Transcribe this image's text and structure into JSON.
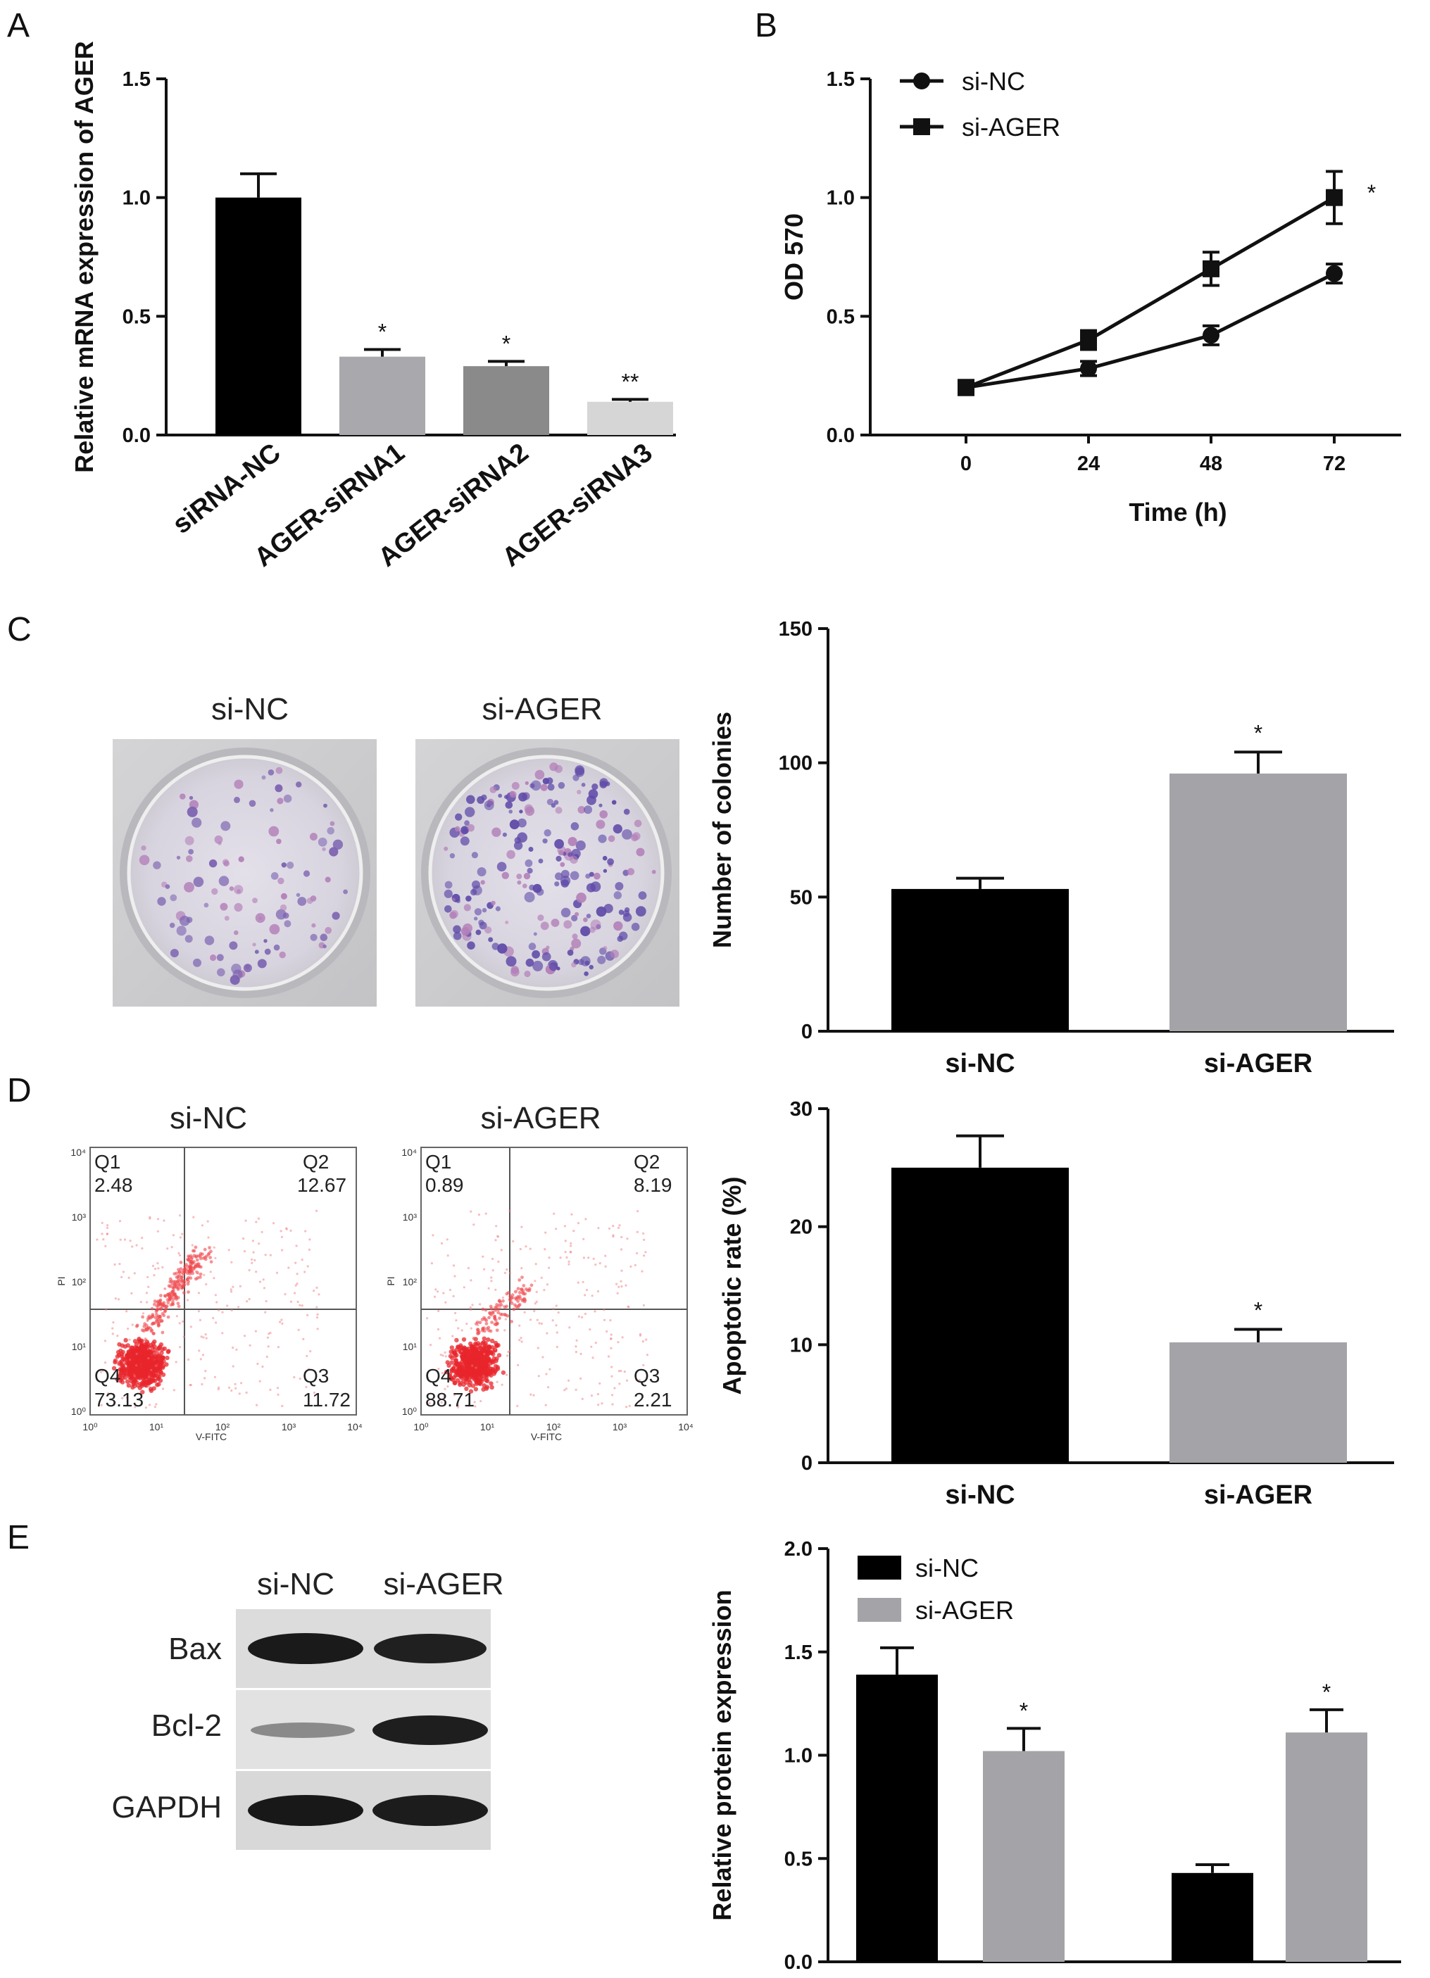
{
  "panel_labels": [
    "A",
    "B",
    "C",
    "D",
    "E"
  ],
  "colony_images": {
    "labels": [
      "si-NC",
      "si-AGER"
    ]
  },
  "flow_plots": [
    {
      "title": "si-NC",
      "quadrants": {
        "Q1": "2.48",
        "Q2": "12.67",
        "Q3": "11.72",
        "Q4": "73.13"
      },
      "xlabel": "V-FITC",
      "ylabel": "PI"
    },
    {
      "title": "si-AGER",
      "quadrants": {
        "Q1": "0.89",
        "Q2": "8.19",
        "Q3": "2.21",
        "Q4": "88.71"
      },
      "xlabel": "V-FITC",
      "ylabel": "PI"
    }
  ],
  "western_blot": {
    "lanes": [
      "si-NC",
      "si-AGER"
    ],
    "rows": [
      "Bax",
      "Bcl-2",
      "GAPDH"
    ]
  },
  "chart_data": [
    {
      "id": "A",
      "type": "bar",
      "categories": [
        "siRNA-NC",
        "AGER-siRNA1",
        "AGER-siRNA2",
        "AGER-siRNA3"
      ],
      "values": [
        1.0,
        0.33,
        0.29,
        0.14
      ],
      "errors": [
        0.1,
        0.03,
        0.02,
        0.01
      ],
      "colors": [
        "#000000",
        "#a8a8ad",
        "#8a8a8a",
        "#d6d6d6"
      ],
      "significance": [
        "",
        "*",
        "*",
        "**"
      ],
      "title": "",
      "xlabel": "",
      "ylabel": "Relative mRNA expression of AGER",
      "ylim": [
        0,
        1.5
      ],
      "yticks": [
        "0.0",
        "0.5",
        "1.0",
        "1.5"
      ]
    },
    {
      "id": "B",
      "type": "line",
      "x": [
        0,
        24,
        48,
        72
      ],
      "xticks": [
        "0",
        "24",
        "48",
        "72"
      ],
      "series": [
        {
          "name": "si-NC",
          "values": [
            0.2,
            0.28,
            0.42,
            0.68
          ],
          "errors": [
            0.03,
            0.03,
            0.04,
            0.04
          ],
          "marker": "circle"
        },
        {
          "name": "si-AGER",
          "values": [
            0.2,
            0.4,
            0.7,
            1.0
          ],
          "errors": [
            0.03,
            0.04,
            0.07,
            0.11
          ],
          "marker": "square"
        }
      ],
      "significance": "*",
      "title": "",
      "xlabel": "Time (h)",
      "ylabel": "OD 570",
      "ylim": [
        0,
        1.5
      ],
      "yticks": [
        "0.0",
        "0.5",
        "1.0",
        "1.5"
      ],
      "legend": "top-left"
    },
    {
      "id": "C",
      "type": "bar",
      "categories": [
        "si-NC",
        "si-AGER"
      ],
      "values": [
        53,
        96
      ],
      "errors": [
        4,
        8
      ],
      "colors": [
        "#000000",
        "#a3a3a8"
      ],
      "significance": [
        "",
        "*"
      ],
      "title": "",
      "xlabel": "",
      "ylabel": "Number of colonies",
      "ylim": [
        0,
        150
      ],
      "yticks": [
        "0",
        "50",
        "100",
        "150"
      ]
    },
    {
      "id": "D",
      "type": "bar",
      "categories": [
        "si-NC",
        "si-AGER"
      ],
      "values": [
        25,
        10.2
      ],
      "errors": [
        2.7,
        1.1
      ],
      "colors": [
        "#000000",
        "#a3a3a8"
      ],
      "significance": [
        "",
        "*"
      ],
      "title": "",
      "xlabel": "",
      "ylabel": "Apoptotic rate (%)",
      "ylim": [
        0,
        30
      ],
      "yticks": [
        "0",
        "10",
        "20",
        "30"
      ]
    },
    {
      "id": "E",
      "type": "bar",
      "categories": [
        "Bax",
        "Bcl-2"
      ],
      "series": [
        {
          "name": "si-NC",
          "values": [
            1.39,
            0.43
          ],
          "errors": [
            0.13,
            0.04
          ],
          "color": "#000000"
        },
        {
          "name": "si-AGER",
          "values": [
            1.02,
            1.11
          ],
          "errors": [
            0.11,
            0.11
          ],
          "color": "#a3a3a8"
        }
      ],
      "significance": [
        [
          "",
          "*"
        ],
        [
          "",
          "*"
        ]
      ],
      "title": "",
      "xlabel": "",
      "ylabel": "Relative protein expression",
      "ylim": [
        0,
        2.0
      ],
      "yticks": [
        "0.0",
        "0.5",
        "1.0",
        "1.5",
        "2.0"
      ],
      "legend": "top-left"
    }
  ]
}
